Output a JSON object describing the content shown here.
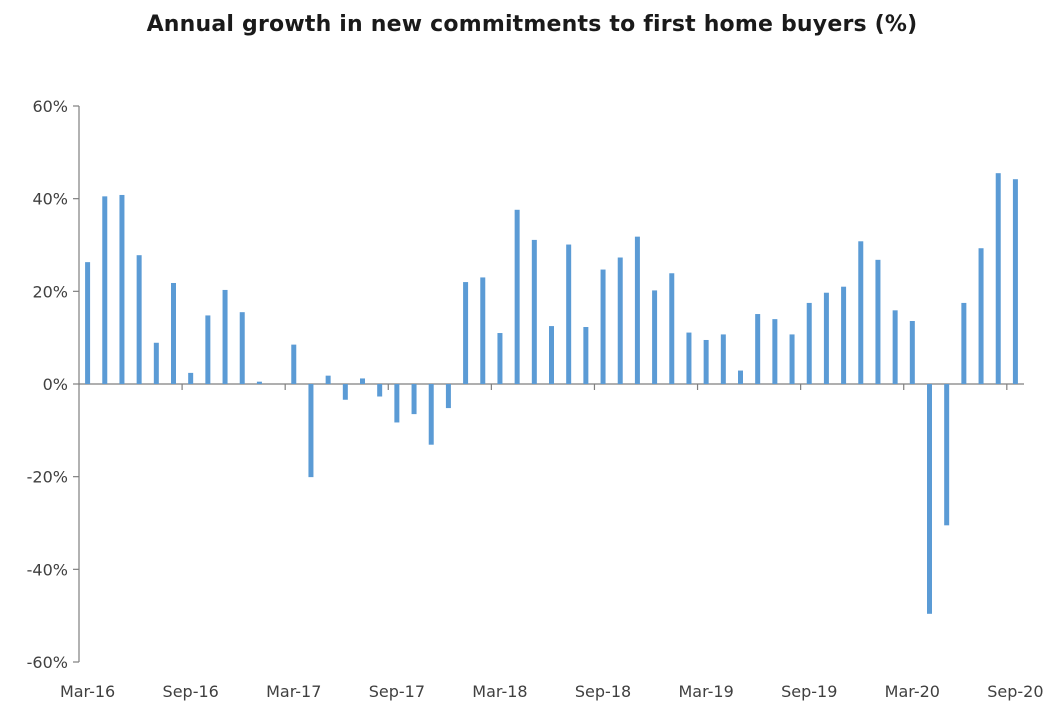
{
  "chart_data": {
    "type": "bar",
    "title": "Annual growth in new commitments to first home buyers (%)",
    "xlabel": "",
    "ylabel": "",
    "ylim": [
      -60,
      60
    ],
    "y_ticks": [
      "-60%",
      "-40%",
      "-20%",
      "0%",
      "20%",
      "40%",
      "60%"
    ],
    "y_tick_values": [
      -60,
      -40,
      -20,
      0,
      20,
      40,
      60
    ],
    "x_tick_labels": [
      "Mar-16",
      "Sep-16",
      "Mar-17",
      "Sep-17",
      "Mar-18",
      "Sep-18",
      "Mar-19",
      "Sep-19",
      "Mar-20",
      "Sep-20"
    ],
    "grid": false,
    "bar_color": "#5b9bd5",
    "categories": [
      "Mar-16",
      "Apr-16",
      "May-16",
      "Jun-16",
      "Jul-16",
      "Aug-16",
      "Sep-16",
      "Oct-16",
      "Nov-16",
      "Dec-16",
      "Jan-17",
      "Feb-17",
      "Mar-17",
      "Apr-17",
      "May-17",
      "Jun-17",
      "Jul-17",
      "Aug-17",
      "Sep-17",
      "Oct-17",
      "Nov-17",
      "Dec-17",
      "Jan-18",
      "Feb-18",
      "Mar-18",
      "Apr-18",
      "May-18",
      "Jun-18",
      "Jul-18",
      "Aug-18",
      "Sep-18",
      "Oct-18",
      "Nov-18",
      "Dec-18",
      "Jan-19",
      "Feb-19",
      "Mar-19",
      "Apr-19",
      "May-19",
      "Jun-19",
      "Jul-19",
      "Aug-19",
      "Sep-19",
      "Oct-19",
      "Nov-19",
      "Dec-19",
      "Jan-20",
      "Feb-20",
      "Mar-20",
      "Apr-20",
      "May-20",
      "Jun-20",
      "Jul-20",
      "Aug-20",
      "Sep-20"
    ],
    "values": [
      26.3,
      40.5,
      40.8,
      27.8,
      8.9,
      21.8,
      2.4,
      14.8,
      20.3,
      15.5,
      0.5,
      0,
      8.5,
      -20.1,
      1.8,
      -3.4,
      1.2,
      -2.7,
      -8.3,
      -6.5,
      -13.1,
      -5.2,
      22.0,
      23.0,
      11.0,
      37.6,
      31.1,
      12.5,
      30.1,
      12.3,
      24.7,
      27.3,
      31.8,
      20.2,
      23.9,
      11.1,
      9.5,
      10.7,
      2.9,
      15.1,
      14.0,
      10.7,
      17.5,
      19.7,
      21.0,
      30.8,
      26.8,
      15.9,
      13.6,
      -49.6,
      -30.5,
      17.5,
      29.3,
      45.5,
      44.2
    ]
  }
}
